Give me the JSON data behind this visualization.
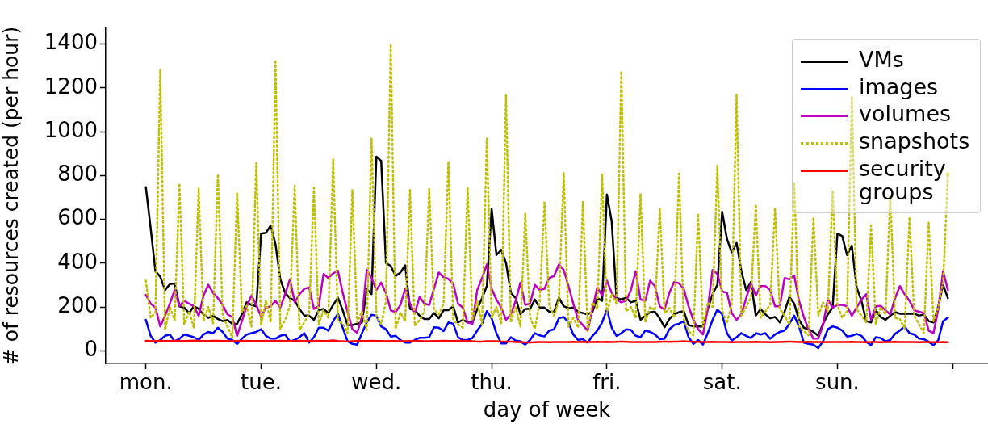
{
  "chart_data": {
    "type": "line",
    "xlabel": "day of week",
    "ylabel": "# of resources created (per hour)",
    "categories": [
      "mon.",
      null,
      null,
      null,
      null,
      null,
      null,
      null,
      null,
      null,
      null,
      null,
      null,
      null,
      null,
      null,
      null,
      null,
      null,
      null,
      null,
      null,
      null,
      null,
      "tue.",
      null,
      null,
      null,
      null,
      null,
      null,
      null,
      null,
      null,
      null,
      null,
      null,
      null,
      null,
      null,
      null,
      null,
      null,
      null,
      null,
      null,
      null,
      null,
      "wed.",
      null,
      null,
      null,
      null,
      null,
      null,
      null,
      null,
      null,
      null,
      null,
      null,
      null,
      null,
      null,
      null,
      null,
      null,
      null,
      null,
      null,
      null,
      null,
      "thu.",
      null,
      null,
      null,
      null,
      null,
      null,
      null,
      null,
      null,
      null,
      null,
      null,
      null,
      null,
      null,
      null,
      null,
      null,
      null,
      null,
      null,
      null,
      null,
      "fri.",
      null,
      null,
      null,
      null,
      null,
      null,
      null,
      null,
      null,
      null,
      null,
      null,
      null,
      null,
      null,
      null,
      null,
      null,
      null,
      null,
      null,
      null,
      null,
      "sat.",
      null,
      null,
      null,
      null,
      null,
      null,
      null,
      null,
      null,
      null,
      null,
      null,
      null,
      null,
      null,
      null,
      null,
      null,
      null,
      null,
      null,
      null,
      null,
      "sun.",
      null,
      null,
      null,
      null,
      null,
      null,
      null,
      null,
      null,
      null,
      null,
      null,
      null,
      null,
      null,
      null,
      null,
      null,
      null,
      null,
      null,
      null,
      null,
      null
    ],
    "series": [
      {
        "name": "VMs",
        "color": "#000000",
        "line_style": "solid",
        "values": [
          747,
          560,
          363,
          338,
          277,
          304,
          307,
          203,
          197,
          172,
          203,
          191,
          165,
          150,
          160,
          145,
          135,
          140,
          123,
          123,
          166,
          221,
          209,
          203,
          535,
          538,
          572,
          486,
          326,
          264,
          240,
          228,
          191,
          160,
          160,
          141,
          185,
          191,
          172,
          209,
          242,
          185,
          117,
          117,
          123,
          129,
          283,
          258,
          886,
          867,
          400,
          387,
          341,
          357,
          390,
          191,
          185,
          160,
          145,
          145,
          172,
          148,
          185,
          185,
          203,
          129,
          141,
          129,
          129,
          191,
          240,
          295,
          648,
          437,
          461,
          400,
          264,
          240,
          166,
          191,
          191,
          234,
          197,
          197,
          178,
          178,
          242,
          203,
          194,
          197,
          178,
          172,
          166,
          178,
          240,
          228,
          713,
          590,
          240,
          234,
          242,
          221,
          228,
          141,
          160,
          176,
          178,
          148,
          107,
          144,
          166,
          176,
          181,
          117,
          111,
          111,
          111,
          191,
          258,
          301,
          634,
          510,
          449,
          492,
          363,
          277,
          314,
          160,
          191,
          166,
          148,
          154,
          129,
          178,
          246,
          215,
          141,
          105,
          98,
          86,
          68,
          123,
          166,
          197,
          535,
          523,
          437,
          480,
          289,
          228,
          135,
          129,
          185,
          154,
          141,
          160,
          176,
          169,
          169,
          169,
          169,
          160,
          166,
          135,
          129,
          203,
          301,
          240,
          null
        ]
      },
      {
        "name": "images",
        "color": "#0000ff",
        "line_style": "solid",
        "values": [
          141,
          68,
          37,
          49,
          68,
          74,
          43,
          55,
          74,
          68,
          62,
          49,
          74,
          86,
          80,
          105,
          86,
          55,
          49,
          31,
          55,
          74,
          80,
          86,
          98,
          68,
          55,
          55,
          68,
          74,
          43,
          49,
          62,
          80,
          37,
          62,
          105,
          105,
          92,
          135,
          169,
          105,
          43,
          31,
          28,
          80,
          129,
          164,
          160,
          111,
          98,
          65,
          68,
          49,
          37,
          37,
          49,
          59,
          59,
          62,
          107,
          105,
          90,
          129,
          123,
          62,
          49,
          49,
          58,
          92,
          123,
          181,
          148,
          80,
          33,
          33,
          62,
          46,
          43,
          28,
          49,
          80,
          70,
          65,
          92,
          98,
          148,
          154,
          129,
          74,
          49,
          53,
          37,
          68,
          92,
          129,
          188,
          105,
          68,
          80,
          98,
          95,
          68,
          62,
          92,
          86,
          74,
          53,
          55,
          98,
          117,
          123,
          135,
          62,
          31,
          49,
          28,
          80,
          141,
          188,
          166,
          80,
          46,
          62,
          80,
          68,
          58,
          80,
          74,
          80,
          55,
          74,
          86,
          92,
          123,
          160,
          111,
          37,
          31,
          28,
          12,
          43,
          98,
          111,
          105,
          92,
          65,
          68,
          77,
          68,
          41,
          25,
          62,
          58,
          43,
          49,
          77,
          92,
          111,
          80,
          74,
          55,
          53,
          41,
          25,
          49,
          135,
          151,
          null
        ]
      },
      {
        "name": "volumes",
        "color": "#bf00bf",
        "line_style": "solid",
        "values": [
          255,
          215,
          197,
          111,
          160,
          215,
          277,
          203,
          228,
          215,
          203,
          160,
          252,
          301,
          264,
          240,
          209,
          166,
          154,
          68,
          135,
          203,
          252,
          209,
          156,
          197,
          203,
          228,
          197,
          258,
          326,
          221,
          258,
          283,
          289,
          191,
          203,
          350,
          332,
          353,
          365,
          264,
          178,
          98,
          82,
          154,
          369,
          332,
          277,
          311,
          264,
          185,
          176,
          209,
          283,
          215,
          172,
          246,
          215,
          209,
          283,
          357,
          335,
          328,
          307,
          215,
          197,
          129,
          123,
          277,
          332,
          394,
          283,
          234,
          197,
          141,
          166,
          228,
          311,
          209,
          215,
          301,
          277,
          283,
          332,
          341,
          394,
          369,
          295,
          215,
          141,
          117,
          92,
          191,
          289,
          252,
          320,
          264,
          234,
          221,
          228,
          277,
          363,
          234,
          228,
          320,
          295,
          203,
          188,
          264,
          314,
          308,
          283,
          203,
          141,
          98,
          74,
          191,
          369,
          351,
          271,
          264,
          172,
          141,
          166,
          240,
          308,
          252,
          295,
          295,
          277,
          203,
          203,
          332,
          326,
          344,
          228,
          154,
          98,
          55,
          55,
          117,
          234,
          197,
          209,
          209,
          203,
          160,
          197,
          234,
          258,
          141,
          203,
          205,
          185,
          166,
          240,
          295,
          258,
          228,
          185,
          178,
          172,
          92,
          80,
          191,
          363,
          277,
          null
        ]
      },
      {
        "name": "snapshots",
        "color": "#bfbf00",
        "line_style": "dotted",
        "values": [
          320,
          150,
          175,
          1285,
          95,
          200,
          140,
          763,
          120,
          180,
          105,
          742,
          135,
          200,
          125,
          806,
          160,
          110,
          60,
          720,
          175,
          205,
          110,
          859,
          115,
          230,
          130,
          1320,
          100,
          140,
          205,
          753,
          95,
          130,
          170,
          744,
          120,
          185,
          150,
          873,
          135,
          125,
          80,
          734,
          130,
          180,
          95,
          968,
          160,
          120,
          225,
          1399,
          100,
          175,
          135,
          734,
          115,
          140,
          180,
          738,
          190,
          165,
          215,
          865,
          140,
          120,
          105,
          744,
          140,
          225,
          120,
          968,
          150,
          200,
          125,
          1169,
          130,
          200,
          110,
          627,
          150,
          100,
          220,
          677,
          205,
          160,
          230,
          812,
          110,
          150,
          105,
          679,
          90,
          220,
          190,
          806,
          170,
          260,
          215,
          1276,
          180,
          200,
          150,
          717,
          130,
          200,
          185,
          652,
          170,
          195,
          150,
          808,
          145,
          90,
          70,
          626,
          110,
          220,
          200,
          845,
          185,
          125,
          215,
          1169,
          160,
          200,
          245,
          668,
          150,
          180,
          210,
          652,
          190,
          160,
          120,
          769,
          110,
          90,
          70,
          609,
          160,
          220,
          180,
          732,
          210,
          150,
          180,
          1162,
          190,
          160,
          130,
          572,
          120,
          200,
          165,
          707,
          150,
          145,
          100,
          609,
          160,
          120,
          80,
          584,
          135,
          200,
          310,
          806,
          null
        ]
      },
      {
        "name": "security groups",
        "color": "#ff0000",
        "line_style": "solid",
        "values": [
          45,
          44,
          44,
          45,
          44,
          44,
          45,
          45,
          44,
          45,
          46,
          45,
          44,
          44,
          45,
          45,
          44,
          44,
          43,
          44,
          44,
          45,
          44,
          44,
          44,
          45,
          44,
          44,
          45,
          44,
          44,
          44,
          45,
          44,
          44,
          44,
          45,
          44,
          45,
          47,
          44,
          43,
          42,
          43,
          44,
          44,
          44,
          45,
          44,
          44,
          43,
          44,
          44,
          43,
          43,
          44,
          44,
          44,
          43,
          43,
          44,
          44,
          45,
          44,
          44,
          45,
          45,
          44,
          43,
          42,
          42,
          43,
          43,
          43,
          42,
          42,
          42,
          40,
          40,
          38,
          38,
          39,
          40,
          40,
          39,
          40,
          40,
          40,
          40,
          41,
          40,
          41,
          40,
          40,
          41,
          40,
          41,
          40,
          41,
          42,
          41,
          40,
          40,
          40,
          40,
          40,
          40,
          41,
          42,
          41,
          42,
          42,
          43,
          42,
          41,
          41,
          40,
          40,
          41,
          40,
          40,
          40,
          39,
          40,
          40,
          40,
          40,
          41,
          40,
          40,
          39,
          40,
          40,
          41,
          42,
          41,
          40,
          40,
          41,
          40,
          40,
          39,
          40,
          40,
          40,
          40,
          40,
          41,
          40,
          40,
          39,
          40,
          40,
          39,
          40,
          40,
          41,
          40,
          40,
          40,
          40,
          39,
          40,
          40,
          39,
          39,
          40,
          39,
          null
        ]
      }
    ],
    "ylim": [
      -58,
      1472
    ],
    "yticks": [
      0,
      200,
      400,
      600,
      800,
      1000,
      1200,
      1400
    ],
    "grid": false,
    "legend": "top right",
    "marker": "none"
  }
}
